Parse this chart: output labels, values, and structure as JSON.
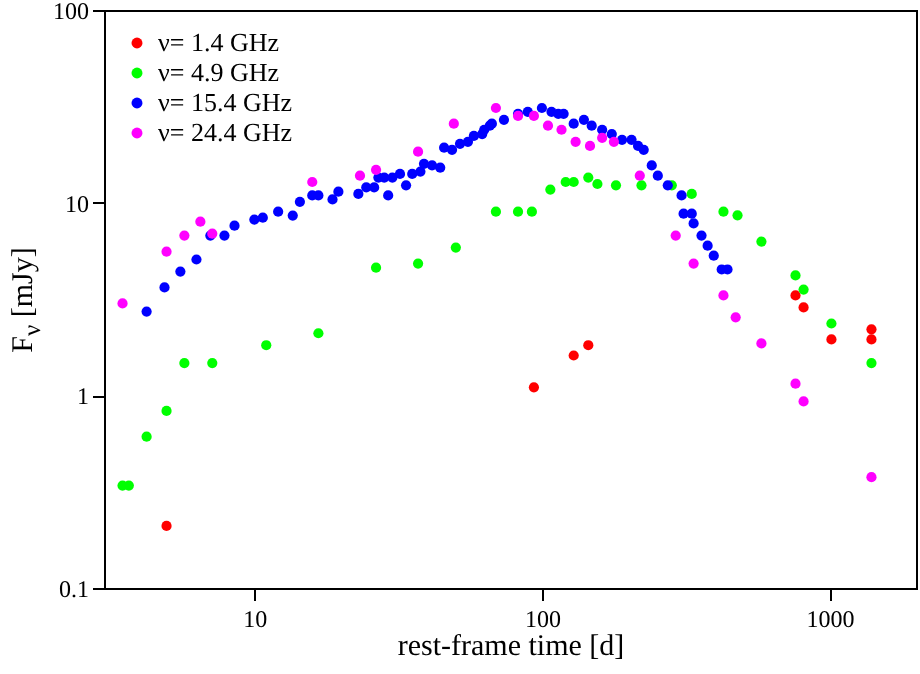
{
  "chart_data": {
    "type": "scatter",
    "xlabel": "rest-frame time [d]",
    "ylabel": "F$_{ν}$ [mJy]",
    "log": "xy",
    "xlim": [
      3,
      2000
    ],
    "ylim": [
      0.1,
      100
    ],
    "xticks": [
      10,
      100,
      1000
    ],
    "yticks": [
      0.1,
      1,
      10,
      100
    ],
    "grid": false,
    "legend": "top left",
    "marker": "circle",
    "series": [
      {
        "name": "ν= 1.4 GHz",
        "color": "#ff0000",
        "x": [
          4.95,
          93.8,
          129,
          145,
          762,
          813,
          1016,
          1400,
          1400
        ],
        "values": [
          0.21,
          1.1,
          1.61,
          1.82,
          3.3,
          2.86,
          1.95,
          2.2,
          1.95
        ]
      },
      {
        "name": "ν= 4.9 GHz",
        "color": "#00ff00",
        "x": [
          3.48,
          3.66,
          4.22,
          4.95,
          5.71,
          7.14,
          11.0,
          16.7,
          26.5,
          37.1,
          50.2,
          69.2,
          82.6,
          92.3,
          107,
          121,
          129,
          145,
          156,
          181,
          222,
          283,
          332,
          428,
          479,
          580,
          762,
          813,
          1016,
          1400
        ],
        "values": [
          0.34,
          0.34,
          0.61,
          0.83,
          1.47,
          1.47,
          1.82,
          2.1,
          4.6,
          4.83,
          5.85,
          8.98,
          8.98,
          8.98,
          11.7,
          12.8,
          12.8,
          13.5,
          12.5,
          12.3,
          12.3,
          12.3,
          11.1,
          8.98,
          8.6,
          6.28,
          4.19,
          3.54,
          2.36,
          1.47
        ]
      },
      {
        "name": "ν= 15.4 GHz",
        "color": "#0000ff",
        "x": [
          4.22,
          4.87,
          5.53,
          6.29,
          7.03,
          7.87,
          8.53,
          10,
          10.7,
          12.1,
          13.6,
          14.4,
          15.9,
          16.7,
          18.7,
          19.6,
          23.0,
          24.5,
          26.1,
          27.0,
          28.3,
          30.2,
          29.2,
          32.1,
          33.7,
          35.4,
          37.8,
          38.9,
          41.5,
          44.3,
          45.7,
          48.7,
          51.9,
          55.3,
          58.0,
          62.0,
          65.9,
          67.0,
          63,
          73.8,
          82.6,
          89.3,
          100,
          108,
          114,
          119,
          129,
          140,
          149,
          162,
          175,
          190,
          205,
          216,
          226,
          241,
          253,
          274,
          306,
          311,
          332,
          337,
          359,
          377,
          396,
          422,
          442
        ],
        "values": [
          2.72,
          3.63,
          4.39,
          5.07,
          6.75,
          6.75,
          7.6,
          8.17,
          8.36,
          8.98,
          8.57,
          10.1,
          10.9,
          10.9,
          10.4,
          11.4,
          11.1,
          12.0,
          12.0,
          13.5,
          13.5,
          13.5,
          10.9,
          14.1,
          12.3,
          14.1,
          14.5,
          15.9,
          15.6,
          15.2,
          19.3,
          18.8,
          20.2,
          20.7,
          22.2,
          22.7,
          25.1,
          25.7,
          23.9,
          26.9,
          28.9,
          29.6,
          31,
          29.6,
          28.9,
          28.9,
          25.7,
          26.9,
          25.1,
          23.9,
          22.7,
          21.2,
          21.2,
          19.7,
          18.8,
          15.6,
          13.8,
          12.3,
          10.9,
          8.77,
          8.77,
          7.8,
          6.75,
          5.98,
          5.31,
          4.5,
          4.5
        ]
      },
      {
        "name": "ν= 24.4 GHz",
        "color": "#ff00ff",
        "x": [
          3.48,
          4.95,
          5.71,
          6.49,
          7.14,
          15.9,
          23.3,
          26.5,
          37.1,
          49.4,
          69.2,
          82.6,
          93.8,
          105,
          117,
          131,
          147,
          162,
          178,
          219,
          292,
          337,
          428,
          472,
          580,
          762,
          813,
          1400
        ],
        "values": [
          3.0,
          5.57,
          6.75,
          7.97,
          6.9,
          12.8,
          13.8,
          14.8,
          18.4,
          25.7,
          31,
          28.2,
          28.2,
          25.1,
          23.9,
          20.7,
          19.7,
          21.7,
          20.7,
          13.8,
          6.75,
          4.83,
          3.3,
          2.54,
          1.86,
          1.15,
          0.93,
          0.376
        ]
      }
    ]
  }
}
